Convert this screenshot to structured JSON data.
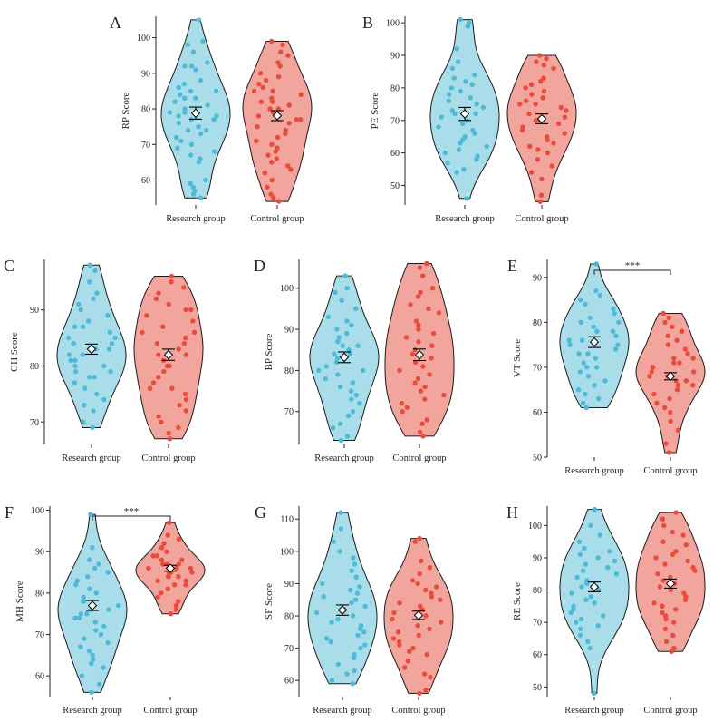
{
  "figure": {
    "colors": {
      "research": "#a9dde9",
      "research_point": "#4dbad8",
      "control": "#f2a59c",
      "control_point": "#e94b3c",
      "outline": "#1a1a1a"
    }
  },
  "chart_data": [
    {
      "type": "violin",
      "panel": "A",
      "ylabel": "RP Score",
      "categories": [
        "Research group",
        "Control group"
      ],
      "ylim": [
        53,
        106
      ],
      "yticks": [
        60,
        70,
        80,
        90,
        100
      ],
      "series": [
        {
          "name": "Research group",
          "min": 55,
          "max": 105,
          "mean": 78.8,
          "error": 1.7,
          "points": [
            105,
            99,
            98,
            96,
            93,
            92,
            92,
            91,
            88,
            87,
            86,
            85,
            85,
            84,
            83,
            83,
            82,
            81,
            80,
            79,
            79,
            78,
            78,
            77,
            77,
            76,
            75,
            74,
            74,
            73,
            72,
            71,
            70,
            69,
            68,
            67,
            66,
            65,
            60,
            59,
            58,
            57,
            56,
            55
          ]
        },
        {
          "name": "Control group",
          "min": 54,
          "max": 99,
          "mean": 78.1,
          "error": 1.4,
          "points": [
            99,
            98,
            96,
            95,
            93,
            92,
            90,
            89,
            88,
            87,
            86,
            85,
            85,
            84,
            83,
            82,
            82,
            81,
            80,
            80,
            79,
            78,
            77,
            77,
            76,
            75,
            74,
            73,
            72,
            71,
            70,
            69,
            68,
            67,
            66,
            65,
            64,
            63,
            62,
            60,
            58,
            56,
            55,
            54
          ]
        }
      ]
    },
    {
      "type": "violin",
      "panel": "B",
      "ylabel": "PE Score",
      "categories": [
        "Research group",
        "Control group"
      ],
      "ylim": [
        44,
        102
      ],
      "yticks": [
        50,
        60,
        70,
        80,
        90,
        100
      ],
      "series": [
        {
          "name": "Research group",
          "min": 46,
          "max": 101,
          "mean": 72.0,
          "error": 2.0,
          "points": [
            101,
            100,
            99,
            92,
            88,
            86,
            84,
            83,
            82,
            81,
            80,
            79,
            78,
            77,
            76,
            75,
            74,
            73,
            72,
            72,
            71,
            70,
            69,
            68,
            67,
            66,
            65,
            64,
            63,
            62,
            61,
            60,
            59,
            58,
            57,
            55,
            54,
            46
          ]
        },
        {
          "name": "Control group",
          "min": 45,
          "max": 90,
          "mean": 70.5,
          "error": 1.5,
          "points": [
            90,
            89,
            88,
            87,
            86,
            83,
            82,
            81,
            80,
            79,
            78,
            77,
            76,
            75,
            75,
            74,
            73,
            72,
            71,
            70,
            70,
            69,
            68,
            67,
            66,
            65,
            64,
            63,
            62,
            61,
            60,
            58,
            56,
            54,
            52,
            47,
            45
          ]
        }
      ]
    },
    {
      "type": "violin",
      "panel": "C",
      "ylabel": "GH Score",
      "categories": [
        "Research group",
        "Control group"
      ],
      "ylim": [
        66,
        99
      ],
      "yticks": [
        70,
        80,
        90
      ],
      "series": [
        {
          "name": "Research group",
          "min": 69,
          "max": 98,
          "mean": 83.0,
          "error": 0.9,
          "points": [
            98,
            97,
            95,
            93,
            92,
            91,
            90,
            89,
            88,
            87,
            87,
            86,
            85,
            85,
            84,
            84,
            83,
            83,
            82,
            82,
            81,
            81,
            80,
            80,
            79,
            79,
            78,
            78,
            77,
            76,
            75,
            74,
            73,
            72,
            70,
            69
          ]
        },
        {
          "name": "Control group",
          "min": 67,
          "max": 96,
          "mean": 82.0,
          "error": 1.0,
          "points": [
            96,
            95,
            94,
            93,
            92,
            91,
            90,
            90,
            89,
            88,
            87,
            86,
            86,
            85,
            84,
            84,
            83,
            82,
            82,
            81,
            80,
            80,
            79,
            78,
            77,
            76,
            76,
            75,
            74,
            73,
            72,
            71,
            70,
            69,
            68,
            67
          ]
        }
      ]
    },
    {
      "type": "violin",
      "panel": "D",
      "ylabel": "BP Score",
      "categories": [
        "Research group",
        "Control group"
      ],
      "ylim": [
        62,
        107
      ],
      "yticks": [
        70,
        80,
        90,
        100
      ],
      "series": [
        {
          "name": "Research group",
          "min": 63,
          "max": 103,
          "mean": 83.2,
          "error": 1.3,
          "points": [
            103,
            100,
            99,
            97,
            95,
            93,
            92,
            91,
            90,
            89,
            88,
            87,
            86,
            86,
            85,
            84,
            84,
            83,
            83,
            82,
            81,
            80,
            80,
            79,
            78,
            77,
            76,
            75,
            74,
            73,
            72,
            70,
            69,
            67,
            66,
            64,
            63
          ]
        },
        {
          "name": "Control group",
          "min": 64,
          "max": 106,
          "mean": 83.8,
          "error": 1.4,
          "points": [
            106,
            105,
            103,
            100,
            99,
            98,
            96,
            95,
            94,
            92,
            91,
            90,
            89,
            88,
            87,
            86,
            85,
            84,
            83,
            82,
            81,
            80,
            79,
            78,
            77,
            76,
            75,
            74,
            73,
            72,
            71,
            70,
            68,
            67,
            65,
            64
          ]
        }
      ]
    },
    {
      "type": "violin",
      "panel": "E",
      "ylabel": "VT Score",
      "categories": [
        "Research group",
        "Control group"
      ],
      "ylim": [
        50,
        94
      ],
      "yticks": [
        50,
        60,
        70,
        80,
        90
      ],
      "series": [
        {
          "name": "Research group",
          "min": 61,
          "max": 93,
          "mean": 75.6,
          "error": 1.2,
          "points": [
            93,
            87,
            86,
            85,
            84,
            83,
            82,
            81,
            80,
            80,
            79,
            78,
            78,
            77,
            76,
            76,
            75,
            75,
            74,
            73,
            73,
            72,
            71,
            70,
            70,
            69,
            68,
            67,
            66,
            65,
            64,
            63,
            62,
            61
          ]
        },
        {
          "name": "Control group",
          "min": 51,
          "max": 82,
          "mean": 68.0,
          "error": 0.8,
          "points": [
            82,
            81,
            80,
            79,
            78,
            77,
            76,
            75,
            74,
            73,
            72,
            72,
            71,
            71,
            70,
            70,
            69,
            69,
            68,
            68,
            67,
            67,
            66,
            66,
            65,
            64,
            63,
            62,
            61,
            60,
            58,
            56,
            53,
            51
          ]
        }
      ],
      "significance": {
        "label": "***"
      }
    },
    {
      "type": "violin",
      "panel": "F",
      "ylabel": "MH Score",
      "categories": [
        "Research group",
        "Control group"
      ],
      "ylim": [
        55,
        101
      ],
      "yticks": [
        60,
        70,
        80,
        90,
        100
      ],
      "series": [
        {
          "name": "Research group",
          "min": 56,
          "max": 99,
          "mean": 77.0,
          "error": 1.2,
          "points": [
            99,
            91,
            88,
            87,
            86,
            85,
            84,
            83,
            82,
            81,
            80,
            79,
            78,
            78,
            77,
            77,
            76,
            76,
            75,
            75,
            74,
            74,
            73,
            72,
            71,
            70,
            69,
            68,
            67,
            66,
            65,
            64,
            63,
            62,
            60,
            58,
            56
          ]
        },
        {
          "name": "Control group",
          "min": 75,
          "max": 97,
          "mean": 86.0,
          "error": 0.7,
          "points": [
            97,
            94,
            93,
            92,
            91,
            90,
            89,
            89,
            88,
            88,
            87,
            87,
            87,
            86,
            86,
            86,
            85,
            85,
            85,
            84,
            84,
            84,
            83,
            83,
            82,
            82,
            81,
            80,
            79,
            78,
            77,
            76,
            75
          ]
        }
      ],
      "significance": {
        "label": "***"
      }
    },
    {
      "type": "violin",
      "panel": "G",
      "ylabel": "SF Score",
      "categories": [
        "Research group",
        "Control group"
      ],
      "ylim": [
        55,
        114
      ],
      "yticks": [
        60,
        70,
        80,
        90,
        100,
        110
      ],
      "series": [
        {
          "name": "Research group",
          "min": 59,
          "max": 112,
          "mean": 81.8,
          "error": 1.6,
          "points": [
            112,
            107,
            103,
            100,
            98,
            96,
            94,
            92,
            90,
            89,
            88,
            87,
            86,
            85,
            84,
            83,
            82,
            81,
            80,
            79,
            78,
            77,
            76,
            75,
            74,
            73,
            72,
            71,
            70,
            68,
            67,
            65,
            63,
            62,
            60,
            59
          ]
        },
        {
          "name": "Control group",
          "min": 56,
          "max": 104,
          "mean": 80.2,
          "error": 1.3,
          "points": [
            104,
            103,
            97,
            95,
            93,
            91,
            90,
            89,
            88,
            87,
            86,
            85,
            84,
            83,
            82,
            81,
            80,
            79,
            78,
            77,
            76,
            75,
            74,
            73,
            72,
            71,
            70,
            69,
            68,
            66,
            64,
            62,
            61,
            57,
            56
          ]
        }
      ]
    },
    {
      "type": "violin",
      "panel": "H",
      "ylabel": "RE Score",
      "categories": [
        "Research group",
        "Control group"
      ],
      "ylim": [
        47,
        106
      ],
      "yticks": [
        50,
        60,
        70,
        80,
        90,
        100
      ],
      "series": [
        {
          "name": "Research group",
          "min": 48,
          "max": 105,
          "mean": 81.0,
          "error": 1.5,
          "points": [
            105,
            100,
            97,
            95,
            93,
            92,
            91,
            90,
            89,
            88,
            87,
            86,
            85,
            84,
            83,
            82,
            81,
            80,
            79,
            78,
            77,
            76,
            75,
            74,
            73,
            72,
            71,
            70,
            69,
            68,
            66,
            64,
            62,
            48
          ]
        },
        {
          "name": "Control group",
          "min": 61,
          "max": 104,
          "mean": 82.0,
          "error": 1.4,
          "points": [
            104,
            102,
            100,
            98,
            97,
            95,
            94,
            92,
            91,
            90,
            89,
            88,
            87,
            86,
            85,
            84,
            83,
            82,
            81,
            80,
            79,
            78,
            77,
            76,
            75,
            74,
            73,
            72,
            71,
            70,
            68,
            66,
            64,
            62,
            61
          ]
        }
      ]
    }
  ]
}
